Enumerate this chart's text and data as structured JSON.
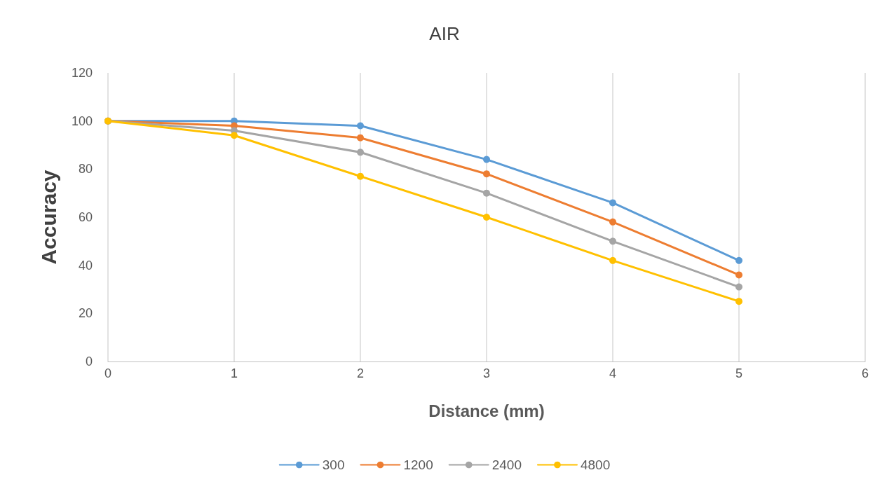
{
  "chart_data": {
    "type": "line",
    "title": "AIR",
    "xlabel": "Distance (mm)",
    "ylabel": "Accuracy",
    "x": [
      0,
      1,
      2,
      3,
      4,
      5
    ],
    "xlim": [
      0,
      6
    ],
    "xticks": [
      0,
      1,
      2,
      3,
      4,
      5,
      6
    ],
    "ylim": [
      0,
      120
    ],
    "yticks": [
      0,
      20,
      40,
      60,
      80,
      100,
      120
    ],
    "grid": "x",
    "legend": "bottom",
    "marker": "circle",
    "line_style": "solid",
    "series": [
      {
        "name": "300",
        "color": "#5b9bd5",
        "values": [
          100,
          100,
          98,
          84,
          66,
          42
        ]
      },
      {
        "name": "1200",
        "color": "#ed7d31",
        "values": [
          100,
          98,
          93,
          78,
          58,
          36
        ]
      },
      {
        "name": "2400",
        "color": "#a5a5a5",
        "values": [
          100,
          96,
          87,
          70,
          50,
          31
        ]
      },
      {
        "name": "4800",
        "color": "#ffc000",
        "values": [
          100,
          94,
          77,
          60,
          42,
          25
        ]
      }
    ]
  }
}
